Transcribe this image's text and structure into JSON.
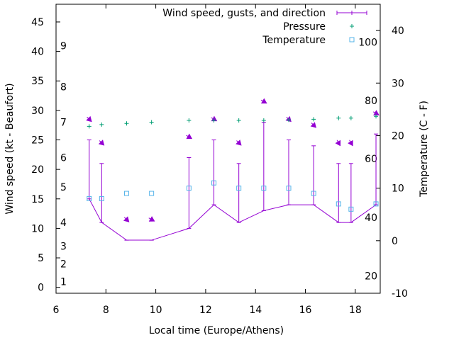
{
  "chart_data": {
    "type": "line",
    "xlabel": "Local time (Europe/Athens)",
    "ylabel": "Wind speed (kt - Beaufort)",
    "y2label": "Temperature (C - F)",
    "xlim": [
      6,
      19
    ],
    "ylim": [
      -1,
      48
    ],
    "y2lim": [
      -10,
      45
    ],
    "x_ticks": [
      6,
      8,
      10,
      12,
      14,
      16,
      18
    ],
    "y_ticks": [
      0,
      5,
      10,
      15,
      20,
      25,
      30,
      35,
      40,
      45
    ],
    "y2_ticks": [
      -10,
      0,
      10,
      20,
      30,
      40
    ],
    "beaufort_labels": [
      {
        "label": "1",
        "kt": 1
      },
      {
        "label": "2",
        "kt": 4
      },
      {
        "label": "3",
        "kt": 7
      },
      {
        "label": "4",
        "kt": 11
      },
      {
        "label": "5",
        "kt": 17
      },
      {
        "label": "6",
        "kt": 22
      },
      {
        "label": "7",
        "kt": 28
      },
      {
        "label": "8",
        "kt": 34
      },
      {
        "label": "9",
        "kt": 41
      }
    ],
    "fahrenheit_labels": [
      {
        "label": "20",
        "c": -6.7
      },
      {
        "label": "40",
        "c": 4.4
      },
      {
        "label": "60",
        "c": 15.6
      },
      {
        "label": "80",
        "c": 26.7
      },
      {
        "label": "100",
        "c": 37.8
      }
    ],
    "legend": {
      "position": "top-right",
      "entries": [
        {
          "label": "Wind speed, gusts, and direction",
          "color": "#9400d3",
          "marker": "line"
        },
        {
          "label": "Pressure",
          "color": "#009e73",
          "marker": "plus"
        },
        {
          "label": "Temperature",
          "color": "#56b4e9",
          "marker": "square"
        }
      ]
    },
    "series": [
      {
        "name": "Wind speed, gusts, and direction",
        "color": "#9400d3",
        "points": [
          {
            "x": 7.33,
            "speed": 15,
            "gust": 25,
            "dir": 315
          },
          {
            "x": 7.83,
            "speed": 11,
            "gust": 21,
            "dir": 315
          },
          {
            "x": 8.83,
            "speed": 8,
            "gust": 8,
            "dir": 315
          },
          {
            "x": 9.83,
            "speed": 8,
            "gust": 8,
            "dir": 300
          },
          {
            "x": 11.33,
            "speed": 10,
            "gust": 22,
            "dir": 300
          },
          {
            "x": 12.33,
            "speed": 14,
            "gust": 25,
            "dir": 300
          },
          {
            "x": 13.33,
            "speed": 11,
            "gust": 21,
            "dir": 315
          },
          {
            "x": 14.33,
            "speed": 13,
            "gust": 28,
            "dir": 300
          },
          {
            "x": 15.33,
            "speed": 14,
            "gust": 25,
            "dir": 315
          },
          {
            "x": 16.33,
            "speed": 14,
            "gust": 24,
            "dir": 315
          },
          {
            "x": 17.33,
            "speed": 11,
            "gust": 21,
            "dir": 330
          },
          {
            "x": 17.83,
            "speed": 11,
            "gust": 21,
            "dir": 330
          },
          {
            "x": 18.83,
            "speed": 14,
            "gust": 26,
            "dir": 300
          }
        ]
      },
      {
        "name": "Pressure",
        "color": "#009e73",
        "x": [
          7.33,
          7.83,
          8.83,
          9.83,
          11.33,
          12.33,
          13.33,
          14.33,
          15.33,
          16.33,
          17.33,
          17.83,
          18.83
        ],
        "y": [
          27.3,
          27.6,
          27.8,
          28.0,
          28.3,
          28.3,
          28.3,
          28.3,
          28.4,
          28.5,
          28.7,
          28.7,
          29.0
        ]
      },
      {
        "name": "Temperature",
        "color": "#56b4e9",
        "x": [
          7.33,
          7.83,
          8.83,
          9.83,
          11.33,
          12.33,
          13.33,
          14.33,
          15.33,
          16.33,
          17.33,
          17.83,
          18.83
        ],
        "y": [
          8,
          8,
          9,
          9,
          10,
          11,
          10,
          10,
          10,
          9,
          7,
          6,
          7
        ]
      }
    ]
  }
}
